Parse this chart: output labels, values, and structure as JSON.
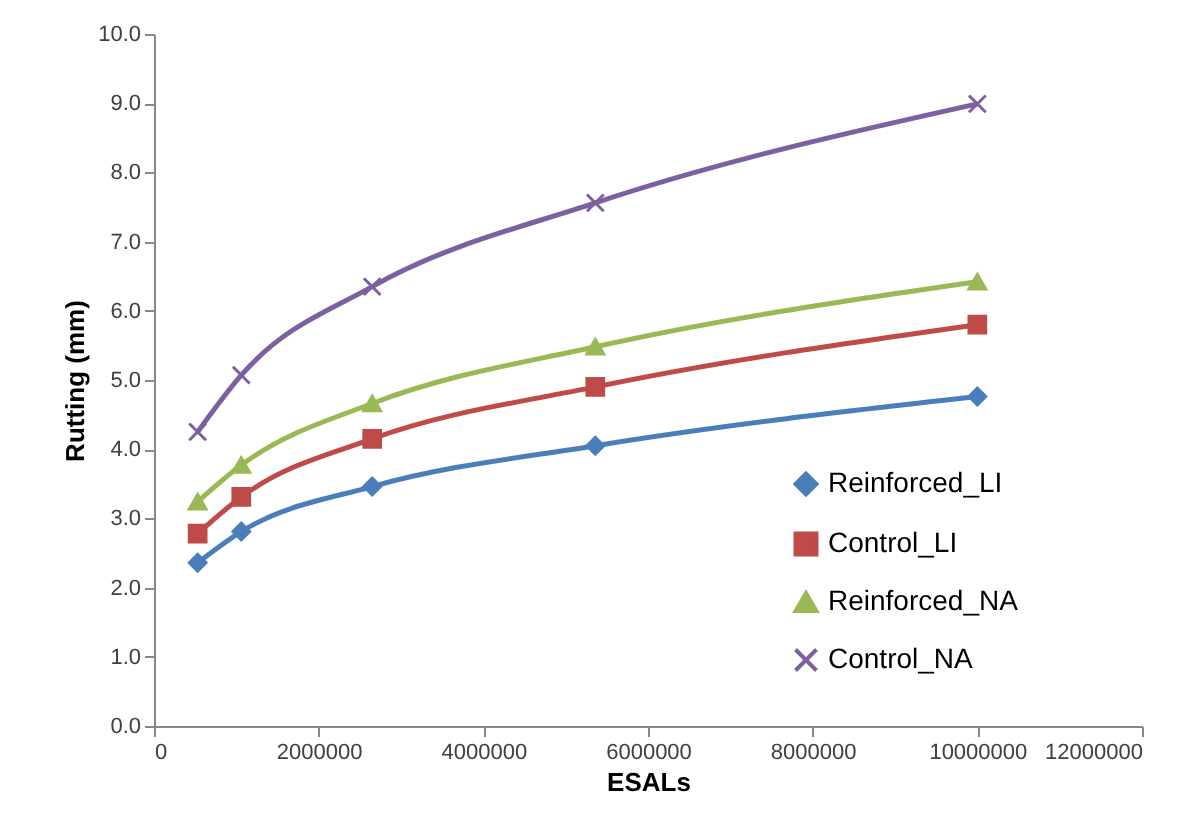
{
  "chart_data": {
    "type": "line",
    "xlabel": "ESALs",
    "ylabel": "Rutting (mm)",
    "x": [
      530000,
      1060000,
      2650000,
      5360000,
      10000000
    ],
    "series": [
      {
        "name": "Reinforced_LI",
        "color": "#4a7ebb",
        "marker": "diamond",
        "values": [
          2.36,
          2.81,
          3.46,
          4.05,
          4.76
        ]
      },
      {
        "name": "Control_LI",
        "color": "#be4b48",
        "marker": "square",
        "values": [
          2.78,
          3.31,
          4.15,
          4.9,
          5.8
        ]
      },
      {
        "name": "Reinforced_NA",
        "color": "#98b954",
        "marker": "triangle",
        "values": [
          3.24,
          3.77,
          4.66,
          5.48,
          6.42
        ]
      },
      {
        "name": "Control_NA",
        "color": "#7d60a0",
        "marker": "cross",
        "values": [
          4.25,
          5.07,
          6.35,
          7.56,
          8.99
        ]
      }
    ],
    "xlim": [
      0,
      12000000
    ],
    "xticks": [
      0,
      2000000,
      4000000,
      6000000,
      8000000,
      10000000,
      12000000
    ],
    "ylim": [
      0,
      10
    ],
    "yticks": [
      {
        "value": 0,
        "label": "0.0"
      },
      {
        "value": 1,
        "label": "1.0"
      },
      {
        "value": 2,
        "label": "2.0"
      },
      {
        "value": 3,
        "label": "3.0"
      },
      {
        "value": 4,
        "label": "4.0"
      },
      {
        "value": 5,
        "label": "5.0"
      },
      {
        "value": 6,
        "label": "6.0"
      },
      {
        "value": 7,
        "label": "7.0"
      },
      {
        "value": 8,
        "label": "8.0"
      },
      {
        "value": 9,
        "label": "9.0"
      },
      {
        "value": 10,
        "label": "10.0"
      }
    ],
    "grid": false,
    "legend": "bottom right",
    "line_style": "solid"
  }
}
